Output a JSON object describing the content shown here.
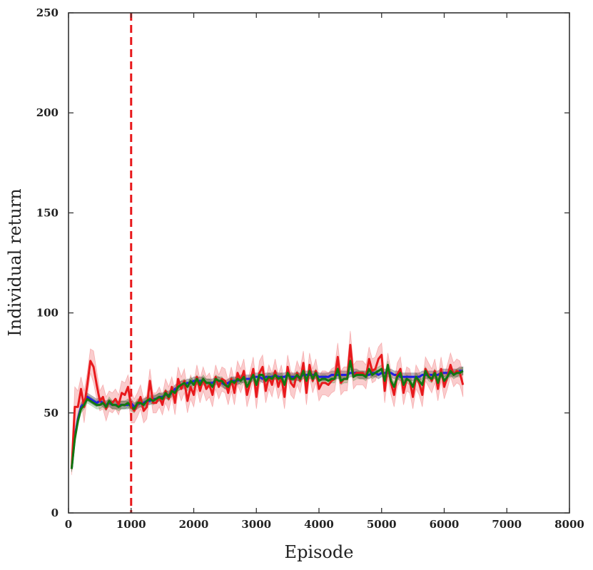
{
  "chart_data": {
    "type": "line",
    "title": "",
    "xlabel": "Episode",
    "ylabel": "Individual return",
    "xlim": [
      0,
      8000
    ],
    "ylim": [
      0,
      250
    ],
    "xticks": [
      0,
      1000,
      2000,
      3000,
      4000,
      5000,
      6000,
      7000,
      8000
    ],
    "yticks": [
      0,
      50,
      100,
      150,
      200,
      250
    ],
    "grid": false,
    "legend": "none",
    "vertical_marker": {
      "x": 1000,
      "color": "#e8191c",
      "style": "dashed"
    },
    "x": [
      50,
      100,
      150,
      200,
      250,
      300,
      350,
      400,
      450,
      500,
      550,
      600,
      650,
      700,
      750,
      800,
      850,
      900,
      950,
      1000,
      1050,
      1100,
      1150,
      1200,
      1250,
      1300,
      1350,
      1400,
      1450,
      1500,
      1550,
      1600,
      1650,
      1700,
      1750,
      1800,
      1850,
      1900,
      1950,
      2000,
      2050,
      2100,
      2150,
      2200,
      2250,
      2300,
      2350,
      2400,
      2450,
      2500,
      2550,
      2600,
      2650,
      2700,
      2750,
      2800,
      2850,
      2900,
      2950,
      3000,
      3050,
      3100,
      3150,
      3200,
      3250,
      3300,
      3350,
      3400,
      3450,
      3500,
      3550,
      3600,
      3650,
      3700,
      3750,
      3800,
      3850,
      3900,
      3950,
      4000,
      4050,
      4100,
      4150,
      4200,
      4250,
      4300,
      4350,
      4400,
      4450,
      4500,
      4550,
      4600,
      4650,
      4700,
      4750,
      4800,
      4850,
      4900,
      4950,
      5000,
      5050,
      5100,
      5150,
      5200,
      5250,
      5300,
      5350,
      5400,
      5450,
      5500,
      5550,
      5600,
      5650,
      5700,
      5750,
      5800,
      5850,
      5900,
      5950,
      6000,
      6050,
      6100,
      6150,
      6200,
      6250,
      6300
    ],
    "series": [
      {
        "color": "#1f1fe0",
        "band_color": "#2b2b40",
        "values": [
          22,
          38,
          47,
          53,
          55,
          58,
          57,
          56,
          55,
          56,
          55,
          54,
          55,
          54,
          54,
          54,
          54,
          54,
          54,
          55,
          53,
          54,
          55,
          55,
          56,
          56,
          57,
          57,
          58,
          58,
          59,
          59,
          60,
          62,
          63,
          64,
          64,
          65,
          65,
          66,
          66,
          66,
          66,
          65,
          65,
          65,
          66,
          66,
          65,
          64,
          65,
          66,
          66,
          66,
          67,
          67,
          67,
          67,
          68,
          68,
          68,
          67,
          68,
          68,
          68,
          69,
          68,
          68,
          68,
          69,
          68,
          68,
          68,
          68,
          69,
          69,
          69,
          69,
          69,
          68,
          68,
          68,
          68,
          69,
          69,
          69,
          69,
          69,
          69,
          70,
          70,
          70,
          69,
          69,
          69,
          69,
          70,
          70,
          69,
          70,
          70,
          70,
          70,
          69,
          69,
          68,
          68,
          68,
          68,
          68,
          68,
          68,
          69,
          69,
          69,
          69,
          69,
          69,
          70,
          70,
          70,
          70,
          70,
          70,
          71,
          71
        ],
        "band": [
          1.5,
          3,
          2.5,
          2,
          2,
          2,
          2,
          2,
          2,
          2,
          2,
          2,
          2,
          2,
          2,
          2,
          2,
          2,
          2,
          2,
          2,
          2,
          2,
          2,
          2,
          2,
          2,
          2,
          2,
          2,
          2,
          2,
          2,
          2,
          2,
          2,
          2,
          2,
          2,
          2,
          2,
          2,
          2,
          2,
          2,
          2,
          2,
          2,
          2,
          2,
          2,
          2,
          2,
          2,
          2,
          2,
          2,
          2,
          2,
          2,
          2,
          2,
          2,
          2,
          2,
          2,
          2,
          2,
          2,
          2,
          2,
          2,
          2,
          2,
          2,
          2,
          2,
          2,
          2,
          2,
          2,
          2,
          2,
          2,
          2,
          2,
          2,
          2,
          2,
          2,
          2,
          2,
          2,
          2,
          2,
          2,
          2,
          2,
          2,
          2,
          2,
          2,
          2,
          2,
          2,
          2,
          2,
          2,
          2,
          2,
          2,
          2,
          2,
          2,
          2,
          2,
          2,
          2,
          2,
          2,
          2,
          2,
          2,
          2,
          2,
          2
        ]
      },
      {
        "color": "#e8191c",
        "band_color": "#e8191c",
        "values": [
          22,
          53,
          53,
          62,
          53,
          64,
          76,
          73,
          64,
          56,
          58,
          52,
          56,
          55,
          57,
          54,
          60,
          59,
          63,
          53,
          51,
          54,
          58,
          51,
          53,
          66,
          55,
          55,
          58,
          54,
          61,
          57,
          63,
          55,
          67,
          62,
          66,
          56,
          63,
          59,
          68,
          61,
          67,
          62,
          64,
          59,
          68,
          63,
          67,
          66,
          60,
          67,
          60,
          70,
          66,
          71,
          59,
          65,
          72,
          58,
          70,
          73,
          61,
          68,
          64,
          71,
          63,
          68,
          58,
          73,
          65,
          63,
          70,
          66,
          75,
          60,
          74,
          66,
          71,
          62,
          65,
          65,
          64,
          66,
          67,
          78,
          65,
          67,
          67,
          84,
          68,
          70,
          70,
          70,
          68,
          77,
          71,
          72,
          77,
          79,
          61,
          74,
          65,
          59,
          69,
          72,
          60,
          67,
          66,
          58,
          68,
          65,
          59,
          72,
          69,
          66,
          71,
          62,
          72,
          63,
          68,
          74,
          69,
          71,
          70,
          64
        ],
        "band": [
          3,
          10,
          8,
          6,
          8,
          6,
          6,
          8,
          7,
          5,
          6,
          6,
          5,
          5,
          5,
          5,
          6,
          6,
          6,
          8,
          6,
          6,
          6,
          6,
          6,
          6,
          5,
          5,
          5,
          5,
          6,
          6,
          5,
          6,
          6,
          6,
          6,
          6,
          6,
          6,
          6,
          6,
          6,
          6,
          6,
          6,
          6,
          6,
          6,
          6,
          6,
          6,
          6,
          6,
          6,
          6,
          6,
          6,
          6,
          6,
          6,
          6,
          6,
          6,
          6,
          6,
          6,
          6,
          6,
          6,
          6,
          6,
          6,
          6,
          6,
          6,
          6,
          6,
          6,
          6,
          6,
          6,
          6,
          6,
          6,
          7,
          6,
          6,
          6,
          7,
          6,
          6,
          6,
          6,
          6,
          6,
          6,
          6,
          6,
          6,
          6,
          6,
          6,
          6,
          6,
          6,
          6,
          6,
          6,
          6,
          6,
          6,
          6,
          6,
          6,
          6,
          6,
          6,
          6,
          6,
          6,
          6,
          6,
          6,
          6,
          6
        ]
      },
      {
        "color": "#117711",
        "band_color": "#117711",
        "values": [
          22,
          37,
          46,
          52,
          54,
          57,
          56,
          55,
          54,
          54,
          55,
          53,
          56,
          54,
          54,
          53,
          54,
          54,
          55,
          53,
          52,
          55,
          55,
          54,
          56,
          57,
          56,
          57,
          58,
          57,
          60,
          58,
          61,
          60,
          63,
          64,
          65,
          63,
          66,
          64,
          67,
          64,
          67,
          65,
          65,
          63,
          67,
          66,
          66,
          64,
          63,
          66,
          65,
          67,
          66,
          68,
          63,
          66,
          69,
          64,
          69,
          69,
          66,
          68,
          67,
          69,
          67,
          68,
          64,
          70,
          67,
          67,
          69,
          67,
          71,
          66,
          71,
          67,
          70,
          66,
          67,
          67,
          66,
          67,
          67,
          72,
          66,
          67,
          67,
          76,
          68,
          69,
          69,
          69,
          68,
          72,
          69,
          70,
          71,
          72,
          66,
          74,
          66,
          63,
          68,
          70,
          64,
          67,
          66,
          63,
          68,
          66,
          64,
          71,
          68,
          67,
          70,
          65,
          70,
          66,
          68,
          71,
          69,
          70,
          70,
          71
        ],
        "band": [
          1.5,
          3,
          2.5,
          2,
          2,
          2,
          2,
          2,
          2,
          2,
          2,
          2,
          2,
          2,
          2,
          2,
          2,
          2,
          2,
          2,
          2,
          2,
          2,
          2,
          2,
          2,
          2,
          2,
          2,
          2,
          2,
          2,
          2,
          2,
          2,
          2,
          2,
          2,
          2,
          2,
          2,
          2,
          2,
          2,
          2,
          2,
          2,
          2,
          2,
          2,
          2,
          2,
          2,
          2,
          2,
          2,
          2,
          2,
          2,
          2,
          2,
          2,
          2,
          2,
          2,
          2,
          2,
          2,
          2,
          2,
          2,
          2,
          2,
          2,
          2,
          2,
          2,
          2,
          2,
          2,
          2,
          2,
          2,
          2,
          2,
          3,
          2,
          2,
          2,
          3,
          2,
          2,
          2,
          2,
          2,
          2,
          2,
          2,
          2,
          2,
          2,
          2,
          2,
          2,
          2,
          2,
          2,
          2,
          2,
          2,
          2,
          2,
          2,
          2,
          2,
          2,
          2,
          2,
          2,
          2,
          2,
          2,
          2,
          2,
          2,
          2
        ]
      }
    ]
  }
}
